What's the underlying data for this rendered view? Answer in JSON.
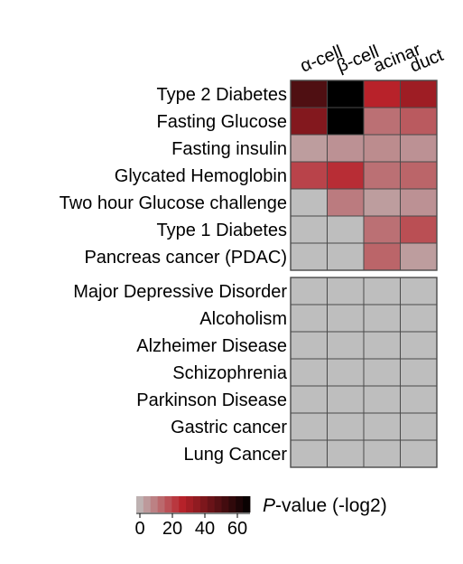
{
  "chart_data": {
    "type": "heatmap",
    "title": "",
    "xlabel": "",
    "ylabel": "",
    "columns": [
      "α-cell",
      "β-cell",
      "acinar",
      "duct"
    ],
    "row_groups": [
      {
        "rows": [
          "Type 2 Diabetes",
          "Fasting Glucose",
          "Fasting insulin",
          "Glycated Hemoglobin",
          "Two hour Glucose challenge",
          "Type 1 Diabetes",
          "Pancreas cancer (PDAC)"
        ],
        "values": [
          [
            52,
            70,
            28,
            34
          ],
          [
            40,
            70,
            14,
            18
          ],
          [
            6,
            8,
            9,
            8
          ],
          [
            22,
            26,
            14,
            16
          ],
          [
            0,
            12,
            6,
            8
          ],
          [
            0,
            0,
            14,
            20
          ],
          [
            0,
            0,
            16,
            6
          ]
        ]
      },
      {
        "rows": [
          "Major Depressive Disorder",
          "Alcoholism",
          "Alzheimer Disease",
          "Schizophrenia",
          "Parkinson Disease",
          "Gastric cancer",
          "Lung Cancer"
        ],
        "values": [
          [
            0,
            0,
            0,
            0
          ],
          [
            0,
            0,
            0,
            0
          ],
          [
            0,
            0,
            0,
            0
          ],
          [
            0,
            0,
            0,
            0
          ],
          [
            0,
            0,
            0,
            0
          ],
          [
            0,
            0,
            0,
            0
          ],
          [
            0,
            0,
            0,
            0
          ]
        ]
      }
    ],
    "colorbar": {
      "label_italic": "P",
      "label_rest": "-value (-log2)",
      "range": [
        0,
        70
      ],
      "ticks": [
        0,
        20,
        40,
        60
      ],
      "tick_labels": [
        "0",
        "20",
        "40",
        "60"
      ]
    },
    "colors": {
      "zero": "#bebebe",
      "mid": "#b8222a",
      "high": "#000000",
      "grid": "#4a4a4a"
    }
  }
}
